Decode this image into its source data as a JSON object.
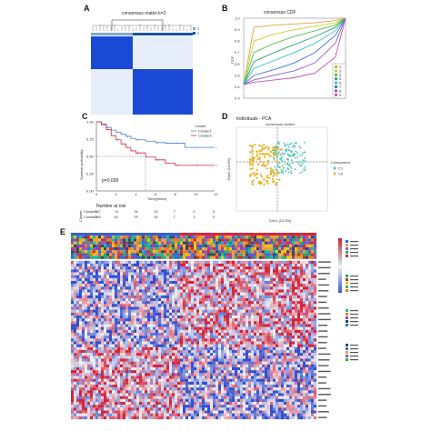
{
  "panels": {
    "A": {
      "letter": "A",
      "title": "consensus matrix k=2",
      "legend": [
        "1",
        "2"
      ],
      "colors": {
        "legend1": "#7fa8d9",
        "legend2": "#1b4fa8",
        "block": "#1a49d6",
        "light": "#e6eefb",
        "dendro": "#222222"
      }
    },
    "B": {
      "letter": "B",
      "title": "consensus CDF",
      "ylabel": "CDF",
      "yticks": [
        "1.0",
        "0.9",
        "0.8",
        "0.7",
        "0.6",
        "0.5",
        "0.4",
        "0.3"
      ],
      "legend": [
        "2",
        "3",
        "4",
        "5",
        "6",
        "7",
        "8",
        "9"
      ],
      "colors": [
        "#e8a13a",
        "#c9d12e",
        "#54c449",
        "#2aa66a",
        "#2ec6cf",
        "#3b75e0",
        "#8a5ad6",
        "#d24fa8",
        "#d62b2b"
      ]
    },
    "C": {
      "letter": "C",
      "ylabel": "Survival probability",
      "xlabel": "Time(years)",
      "yticks": [
        "1.00",
        "0.75",
        "0.50",
        "0.25",
        "0.00"
      ],
      "xticks": [
        "0",
        "2",
        "4",
        "6",
        "8",
        "10",
        "12"
      ],
      "legend_title": "Cluster",
      "legend": [
        "Cluster1",
        "Cluster2"
      ],
      "pvalue": "p=0.028",
      "risk_title": "Number at risk",
      "risk_ylabel": "Cluster",
      "risk_rows": [
        {
          "name": "Cluster1",
          "values": [
            "187",
            "74",
            "31",
            "13",
            "7",
            "2",
            "0"
          ],
          "color": "#4a7fd4"
        },
        {
          "name": "Cluster2",
          "values": [
            "269",
            "81",
            "29",
            "15",
            "7",
            "2",
            "0"
          ],
          "color": "#d9263b"
        }
      ],
      "colors": {
        "c1": "#4a7fd4",
        "c2": "#d9263b"
      }
    },
    "D": {
      "letter": "D",
      "title": "Individuals - PCA",
      "subtitle": "consensus cluster",
      "xlabel": "Dim1 (21.5%)",
      "ylabel": "Dim2 (10.6%)",
      "legend_title": "Component",
      "legend": [
        "C1",
        "C2"
      ],
      "colors": {
        "c1": "#49c3b8",
        "c2": "#e8b32a"
      }
    },
    "E": {
      "letter": "E",
      "colors": {
        "low": "#2f4fd0",
        "mid": "#f4f4f4",
        "high": "#d3223a"
      }
    }
  },
  "chart_data": [
    {
      "type": "heatmap",
      "title": "consensus matrix k=2",
      "clusters": [
        "1",
        "2"
      ],
      "cluster_sizes_fraction": [
        0.41,
        0.59
      ]
    },
    {
      "type": "line",
      "title": "consensus CDF",
      "ylabel": "CDF",
      "ylim": [
        0.3,
        1.0
      ],
      "series": [
        {
          "name": "2",
          "x": [
            0,
            0.1,
            0.3,
            0.5,
            0.7,
            0.9,
            1.0
          ],
          "values": [
            0.42,
            0.92,
            0.94,
            0.95,
            0.96,
            0.98,
            1.0
          ]
        },
        {
          "name": "3",
          "x": [
            0,
            0.1,
            0.3,
            0.5,
            0.7,
            0.9,
            1.0
          ],
          "values": [
            0.42,
            0.8,
            0.86,
            0.9,
            0.93,
            0.96,
            1.0
          ]
        },
        {
          "name": "4",
          "x": [
            0,
            0.1,
            0.3,
            0.5,
            0.7,
            0.9,
            1.0
          ],
          "values": [
            0.42,
            0.7,
            0.78,
            0.84,
            0.89,
            0.94,
            1.0
          ]
        },
        {
          "name": "5",
          "x": [
            0,
            0.1,
            0.3,
            0.5,
            0.7,
            0.9,
            1.0
          ],
          "values": [
            0.42,
            0.62,
            0.7,
            0.77,
            0.84,
            0.92,
            1.0
          ]
        },
        {
          "name": "6",
          "x": [
            0,
            0.1,
            0.3,
            0.5,
            0.7,
            0.9,
            1.0
          ],
          "values": [
            0.42,
            0.56,
            0.63,
            0.7,
            0.78,
            0.89,
            1.0
          ]
        },
        {
          "name": "7",
          "x": [
            0,
            0.1,
            0.3,
            0.5,
            0.7,
            0.9,
            1.0
          ],
          "values": [
            0.42,
            0.5,
            0.55,
            0.61,
            0.7,
            0.85,
            1.0
          ]
        },
        {
          "name": "8",
          "x": [
            0,
            0.1,
            0.3,
            0.5,
            0.7,
            0.9,
            1.0
          ],
          "values": [
            0.42,
            0.46,
            0.5,
            0.54,
            0.61,
            0.78,
            1.0
          ]
        },
        {
          "name": "9",
          "x": [
            0,
            0.1,
            0.3,
            0.5,
            0.7,
            0.9,
            1.0
          ],
          "values": [
            0.42,
            0.44,
            0.46,
            0.48,
            0.52,
            0.66,
            1.0
          ]
        }
      ]
    },
    {
      "type": "line",
      "xlabel": "Time(years)",
      "ylabel": "Survival probability",
      "xlim": [
        0,
        12
      ],
      "ylim": [
        0,
        1
      ],
      "series": [
        {
          "name": "Cluster1",
          "x": [
            0,
            0.5,
            1,
            1.5,
            2,
            2.5,
            3,
            3.5,
            4,
            5,
            6,
            7,
            8,
            9,
            10,
            11,
            12
          ],
          "values": [
            1.0,
            0.97,
            0.92,
            0.88,
            0.85,
            0.82,
            0.79,
            0.76,
            0.74,
            0.72,
            0.7,
            0.69,
            0.69,
            0.63,
            0.63,
            0.63,
            0.63
          ]
        },
        {
          "name": "Cluster2",
          "x": [
            0,
            0.5,
            1,
            1.5,
            2,
            2.5,
            3,
            3.5,
            4,
            5,
            6,
            7,
            8,
            9,
            10,
            11,
            12
          ],
          "values": [
            1.0,
            0.96,
            0.89,
            0.8,
            0.74,
            0.68,
            0.63,
            0.58,
            0.55,
            0.49,
            0.45,
            0.4,
            0.37,
            0.37,
            0.37,
            0.37,
            0.37
          ]
        }
      ],
      "median_time": 5
    },
    {
      "type": "scatter",
      "title": "Individuals - PCA",
      "xlabel": "Dim1 (21.5%)",
      "ylabel": "Dim2 (10.6%)",
      "series": [
        {
          "name": "C1"
        },
        {
          "name": "C2"
        }
      ]
    },
    {
      "type": "heatmap",
      "color_scale": [
        "low",
        "mid",
        "high"
      ]
    }
  ]
}
